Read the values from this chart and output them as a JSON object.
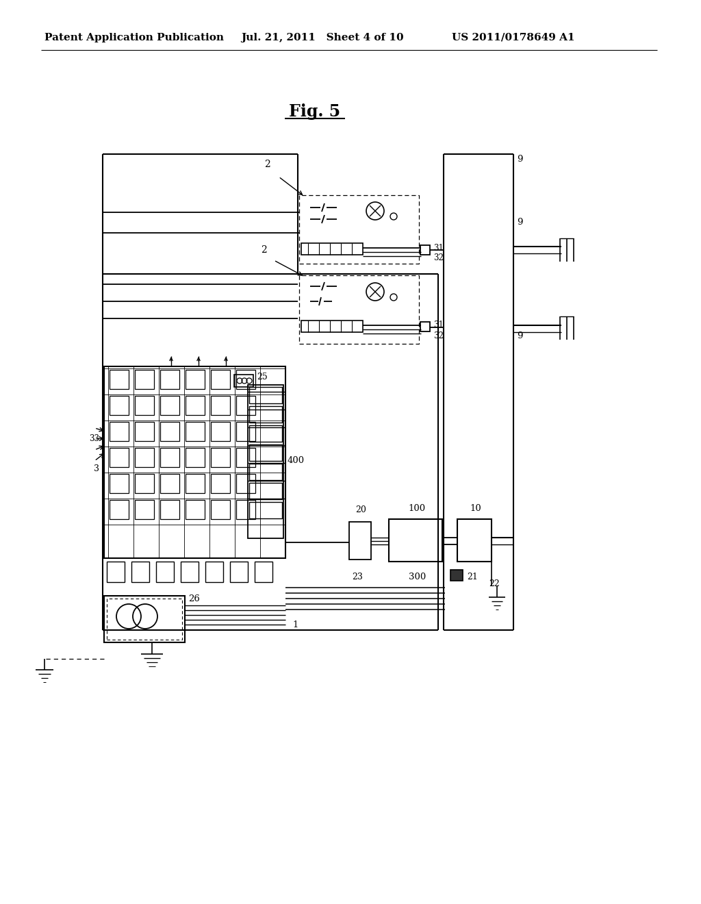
{
  "title": "Fig. 5",
  "header_left": "Patent Application Publication",
  "header_center": "Jul. 21, 2011   Sheet 4 of 10",
  "header_right": "US 2011/0178649 A1",
  "bg_color": "#ffffff"
}
